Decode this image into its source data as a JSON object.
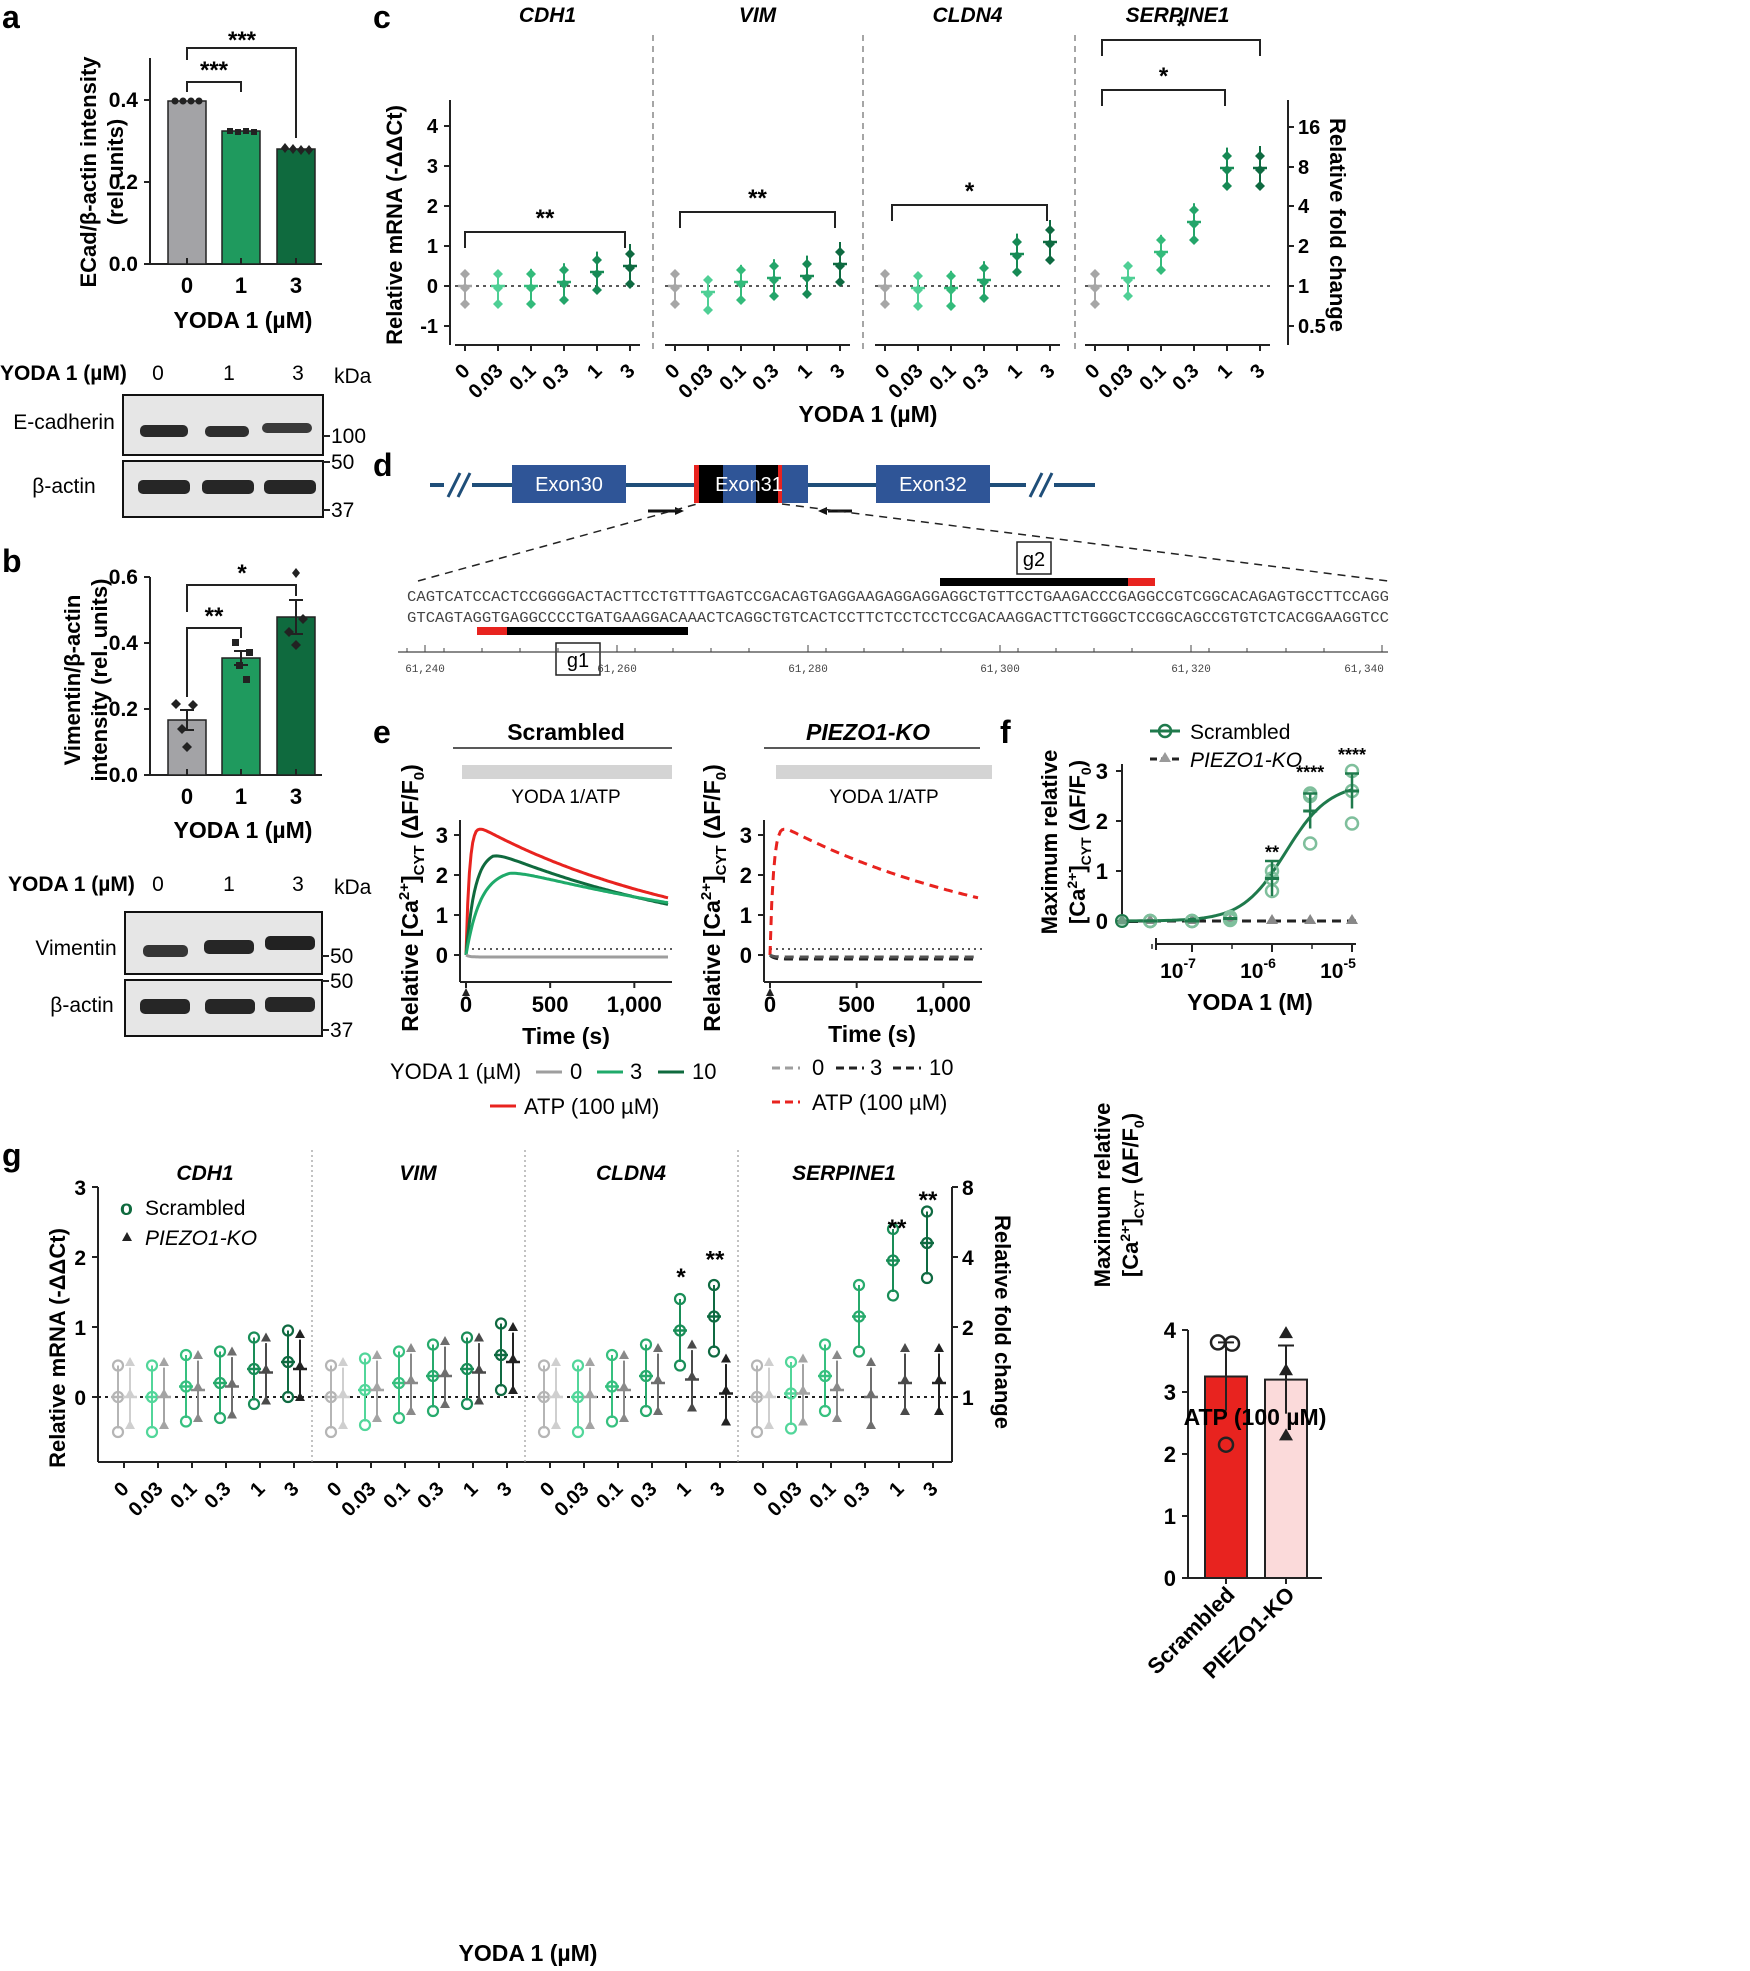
{
  "colors": {
    "grey": "#9e9e9e",
    "light_green": "#3cbf7f",
    "mid_green": "#1f9a5e",
    "dark_green": "#0f6a3e",
    "red": "#e8231f",
    "pink": "#fbdada",
    "navy": "#1f4e79",
    "exon": "#2f5597"
  },
  "panel_a": {
    "letter": "a",
    "chart_data": {
      "type": "bar",
      "categories": [
        "0",
        "1",
        "3"
      ],
      "values": [
        0.4,
        0.325,
        0.28
      ],
      "points": [
        [
          0.402,
          0.4,
          0.399,
          0.401
        ],
        [
          0.327,
          0.323,
          0.325,
          0.322
        ],
        [
          0.286,
          0.281,
          0.279,
          0.277
        ]
      ],
      "ylim": [
        0,
        0.5
      ],
      "yticks": [
        "0.0",
        "0.2",
        "0.4"
      ],
      "ylabel_1": "ECad/β-actin intensity",
      "ylabel_2": "(rel. units)",
      "xlabel": "YODA 1 (µM)",
      "sig_1": "***",
      "sig_2": "***"
    },
    "blot": {
      "header": "YODA 1 (µM)",
      "lanes": [
        "0",
        "1",
        "3"
      ],
      "kda": "kDa",
      "band1": "E-cadherin",
      "band2": "β-actin",
      "m100": "100",
      "m50": "50",
      "m37": "37"
    }
  },
  "panel_b": {
    "letter": "b",
    "chart_data": {
      "type": "bar",
      "categories": [
        "0",
        "1",
        "3"
      ],
      "values": [
        0.165,
        0.355,
        0.48
      ],
      "errors": [
        0.03,
        0.02,
        0.05
      ],
      "points": [
        [
          0.22,
          0.18,
          0.14,
          0.1
        ],
        [
          0.38,
          0.35,
          0.34,
          0.41
        ],
        [
          0.58,
          0.44,
          0.4,
          0.51
        ]
      ],
      "ylim": [
        0,
        0.6
      ],
      "yticks": [
        "0.0",
        "0.2",
        "0.4",
        "0.6"
      ],
      "ylabel_1": "Vimentin/β-actin",
      "ylabel_2": "intensity (rel. units)",
      "xlabel": "YODA 1 (µM)",
      "sig_1": "**",
      "sig_2": "*"
    },
    "blot": {
      "header": "YODA 1 (µM)",
      "lanes": [
        "0",
        "1",
        "3"
      ],
      "kda": "kDa",
      "band1": "Vimentin",
      "band2": "β-actin",
      "m50a": "50",
      "m50b": "50",
      "m37": "37"
    }
  },
  "panel_c": {
    "letter": "c",
    "chart_data": {
      "type": "scatter",
      "genes": [
        "CDH1",
        "VIM",
        "CLDN4",
        "SERPINE1"
      ],
      "x": [
        "0",
        "0.03",
        "0.1",
        "0.3",
        "1",
        "3"
      ],
      "means": [
        [
          0,
          0,
          0,
          0.1,
          0.35,
          0.5
        ],
        [
          0,
          -0.15,
          0.1,
          0.2,
          0.25,
          0.55
        ],
        [
          0,
          -0.05,
          -0.05,
          0.15,
          0.8,
          1.1
        ],
        [
          0,
          0.2,
          0.85,
          1.6,
          2.95,
          2.95
        ]
      ],
      "yticks": [
        "-1",
        "0",
        "1",
        "2",
        "3",
        "4"
      ],
      "ylim": [
        -1.4,
        4.5
      ],
      "ylabel": "Relative mRNA (-ΔΔCt)",
      "right_ticks": [
        "16",
        "8",
        "4",
        "2",
        "1",
        "0.5"
      ],
      "right_label": "Relative fold change",
      "xlabel": "YODA 1 (µM)",
      "sig": [
        "**",
        "**",
        "*",
        "*",
        "*"
      ]
    }
  },
  "panel_d": {
    "letter": "d",
    "exons": [
      "Exon30",
      "Exon31",
      "Exon32"
    ],
    "g1": "g1",
    "g2": "g2",
    "seq_top": "CAGTCATCCACTCCGGGGACTACTTCCTGTTTGAGTCCGACAGTGAGGAAGAGGAGGAGGCTGTTCCTGAAGACCCGAGGCCGTCGGCACAGAGTGCCTTCCAGG",
    "seq_bottom": "GTCAGTAGGTGAGGCCCCTGATGAAGGACAAACTCAGGCTGTCACTCCTTCTCCTCCTCCGACAAGGACTTCTGGGCTCCGGCAGCCGTGTCTCACGGAAGGTCC",
    "ruler": [
      "61,240",
      "61,260",
      "61,280",
      "61,300",
      "61,320",
      "61,340"
    ]
  },
  "panel_e": {
    "letter": "e",
    "left_title": "Scrambled",
    "right_title": "PIEZO1-KO",
    "bar_label": "YODA 1/ATP",
    "ylabel_a": "Relative [Ca",
    "ylabel_b": "2+",
    "ylabel_c": "]",
    "ylabel_d": "CYT",
    "ylabel_e": " (ΔF/F",
    "ylabel_f": "0",
    "ylabel_g": ")",
    "xlabel": "Time (s)",
    "xticks": [
      "0",
      "500",
      "1,000"
    ],
    "yticks": [
      "0",
      "1",
      "2",
      "3"
    ],
    "chart_data": {
      "type": "line",
      "x_range": [
        0,
        1200
      ],
      "y_range": [
        -0.2,
        3.6
      ],
      "series": [
        {
          "name": "ATP (100 µM)",
          "peak": 3.25
        },
        {
          "name": "10",
          "peak": 2.6
        },
        {
          "name": "3",
          "peak": 2.15
        },
        {
          "name": "0",
          "peak": -0.05
        }
      ]
    },
    "legend_title": "YODA 1 (µM)",
    "leg_0": "0",
    "leg_3": "3",
    "leg_10": "10",
    "leg_atp": "ATP (100 µM)"
  },
  "panel_f": {
    "letter": "f",
    "chart_data": {
      "type": "scatter",
      "series": [
        {
          "name": "Scrambled",
          "x": [
            3e-08,
            1e-07,
            3e-07,
            1e-06,
            3e-06,
            1e-05
          ],
          "y": [
            0,
            0,
            0.05,
            0.85,
            2.2,
            2.6
          ]
        },
        {
          "name": "PIEZO1-KO",
          "x": [
            3e-08,
            1e-07,
            3e-07,
            1e-06,
            3e-06,
            1e-05
          ],
          "y": [
            0,
            0,
            0,
            0,
            0,
            0
          ]
        }
      ],
      "xticks_base": "10",
      "xticks_exp": [
        "-7",
        "-6",
        "-5"
      ],
      "yticks": [
        "0",
        "1",
        "2",
        "3"
      ],
      "xlabel": "YODA 1 (M)",
      "sig": [
        "**",
        "****",
        "****"
      ]
    },
    "ylabel_1": "Maximum relative",
    "leg_scr": "Scrambled",
    "leg_ko": "PIEZO1-KO",
    "bar_chart": {
      "type": "bar",
      "categories": [
        "Scrambled",
        "PIEZO1-KO"
      ],
      "values": [
        3.25,
        3.2
      ],
      "errors": [
        0.55,
        0.55
      ],
      "ylim": [
        0,
        4
      ],
      "yticks": [
        "0",
        "1",
        "2",
        "3",
        "4"
      ],
      "xlabel": "ATP (100 µM)"
    }
  },
  "panel_g": {
    "letter": "g",
    "chart_data": {
      "type": "scatter",
      "genes": [
        "CDH1",
        "VIM",
        "CLDN4",
        "SERPINE1"
      ],
      "x": [
        "0",
        "0.03",
        "0.1",
        "0.3",
        "1",
        "3"
      ],
      "scr_means": [
        [
          0,
          0,
          0.15,
          0.2,
          0.4,
          0.5
        ],
        [
          0,
          0.1,
          0.2,
          0.3,
          0.4,
          0.6
        ],
        [
          0,
          0,
          0.15,
          0.3,
          0.95,
          1.15
        ],
        [
          0,
          0.05,
          0.3,
          1.15,
          1.95,
          2.2
        ]
      ],
      "ko_means": [
        [
          0,
          0,
          0.1,
          0.15,
          0.35,
          0.4
        ],
        [
          0,
          0.1,
          0.2,
          0.3,
          0.35,
          0.5
        ],
        [
          0,
          0,
          0.1,
          0.2,
          0.25,
          0.05
        ],
        [
          0,
          0.05,
          0.1,
          0,
          0.2,
          0.2
        ]
      ],
      "yticks": [
        "0",
        "1",
        "2",
        "3"
      ],
      "ylim": [
        -0.9,
        3
      ],
      "ylabel": "Relative mRNA (-ΔΔCt)",
      "right_ticks": [
        "8",
        "4",
        "2",
        "1"
      ],
      "right_label": "Relative fold change",
      "xlabel": "YODA 1 (µM)",
      "sig": [
        "*",
        "**",
        "**",
        "**"
      ]
    },
    "leg_scr": "Scrambled",
    "leg_ko": "PIEZO1-KO"
  }
}
